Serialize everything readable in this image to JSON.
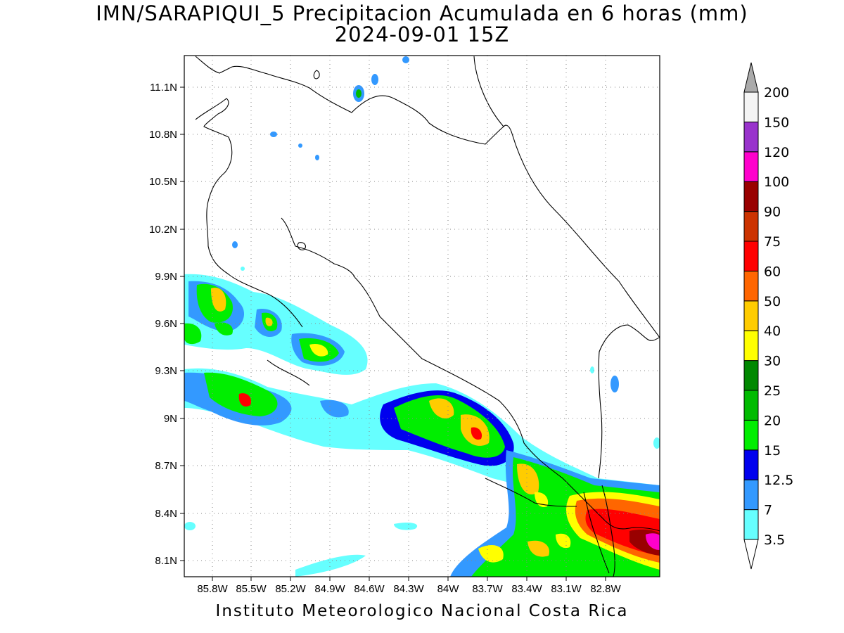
{
  "title": {
    "line1": "IMN/SARAPIQUI_5 Precipitacion Acumulada en 6 horas (mm)",
    "line2": "2024-09-01 15Z"
  },
  "footer": "Instituto Meteorologico Nacional Costa Rica",
  "axes": {
    "lon_ticks": [
      "85.8W",
      "85.5W",
      "85.2W",
      "84.9W",
      "84.6W",
      "84.3W",
      "84W",
      "83.7W",
      "83.4W",
      "83.1W",
      "82.8W"
    ],
    "lat_ticks": [
      "11.1N",
      "10.8N",
      "10.5N",
      "10.2N",
      "9.9N",
      "9.6N",
      "9.3N",
      "9N",
      "8.7N",
      "8.4N",
      "8.1N"
    ]
  },
  "colorbar": {
    "levels": [
      "3.5",
      "7",
      "12.5",
      "15",
      "20",
      "25",
      "30",
      "40",
      "50",
      "60",
      "75",
      "90",
      "100",
      "120",
      "150",
      "200"
    ],
    "colors": [
      "#66ffff",
      "#3399ff",
      "#0000ee",
      "#00ee00",
      "#00bb00",
      "#008800",
      "#ffff00",
      "#ffcc00",
      "#ff6600",
      "#ff0000",
      "#cc3300",
      "#990000",
      "#ff00cc",
      "#9933cc",
      "#f4f4f4",
      "#aaaaaa"
    ]
  }
}
